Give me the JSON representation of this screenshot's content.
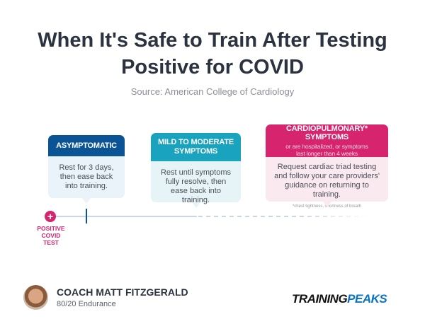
{
  "title_line1": "When It's Safe to Train After Testing",
  "title_line2": "Positive for COVID",
  "source": "Source: American College of Cardiology",
  "stages": [
    {
      "header": "ASYMPTOMATIC",
      "body": "Rest for 3 days, then ease back into training.",
      "color": "#0a5496"
    },
    {
      "header_line1": "MILD TO MODERATE",
      "header_line2": "SYMPTOMS",
      "body": "Rest until symptoms fully resolve, then ease back into training.",
      "color": "#1aa3bf"
    },
    {
      "header": "CARDIOPULMONARY* SYMPTOMS",
      "subheader": "or are hospitalized, or symptoms last longer than 4 weeks",
      "body": "Request cardiac triad testing and follow your care providers' guidance on returning to training.",
      "footnote": "*chest tightness, shortness of breath",
      "color": "#d6246e"
    }
  ],
  "timeline_start": {
    "icon": "plus-icon",
    "line1": "POSITIVE",
    "line2": "COVID",
    "line3": "TEST"
  },
  "author": {
    "name": "COACH MATT FITZGERALD",
    "org": "80/20 Endurance"
  },
  "logo": {
    "part1": "TRAINING",
    "part2": "PEAKS"
  }
}
